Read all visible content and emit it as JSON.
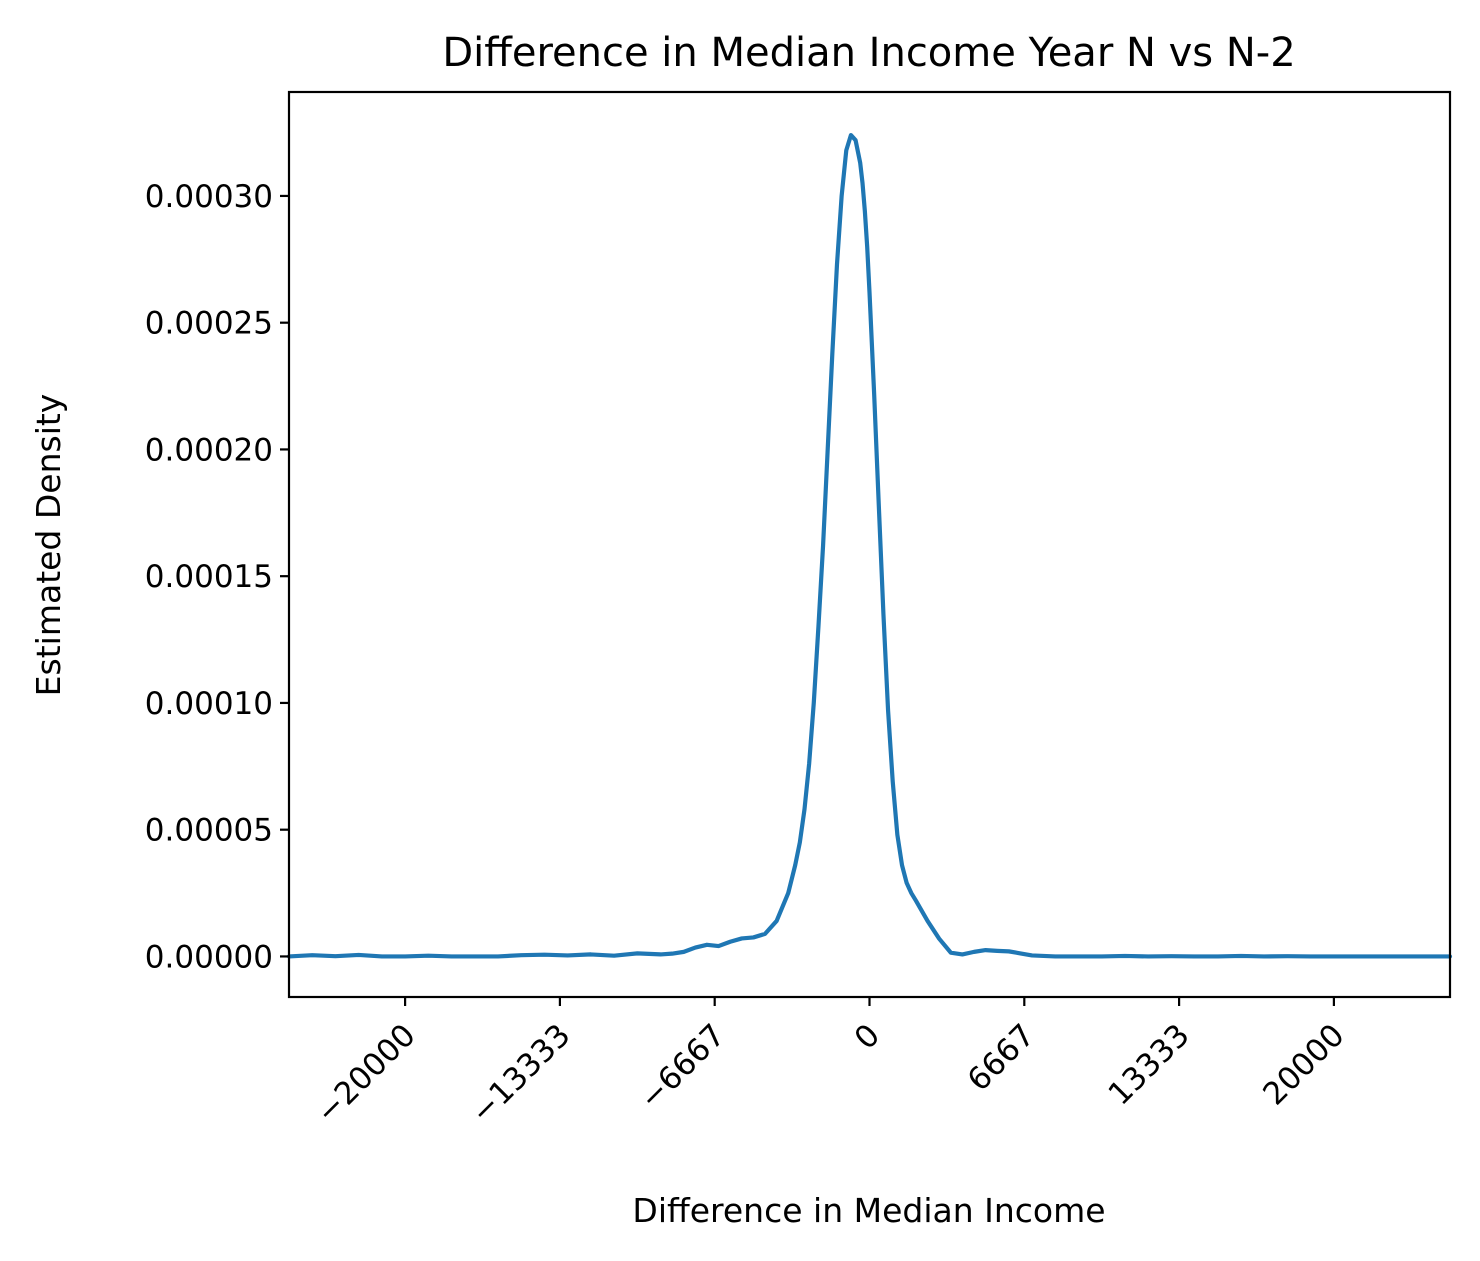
{
  "chart_data": {
    "type": "line",
    "title": "Difference in Median Income Year N vs N-2",
    "xlabel": "Difference in Median Income",
    "ylabel": "Estimated Density",
    "xlim": [
      -25000,
      25000
    ],
    "ylim": [
      -1.6e-05,
      0.000341
    ],
    "xticks": [
      -20000,
      -13333,
      -6667,
      0,
      6667,
      13333,
      20000
    ],
    "xtick_labels": [
      "−20000",
      "−13333",
      "−6667",
      "0",
      "6667",
      "13333",
      "20000"
    ],
    "yticks": [
      0,
      5e-05,
      0.0001,
      0.00015,
      0.0002,
      0.00025,
      0.0003
    ],
    "ytick_labels": [
      "0.00000",
      "0.00005",
      "0.00010",
      "0.00015",
      "0.00020",
      "0.00025",
      "0.00030"
    ],
    "grid": false,
    "series": [
      {
        "color": "#1f77b4",
        "x": [
          -25000,
          -24000,
          -23000,
          -22000,
          -21000,
          -20000,
          -19000,
          -18000,
          -17000,
          -16000,
          -15000,
          -14000,
          -13000,
          -12000,
          -11000,
          -10000,
          -9000,
          -8500,
          -8000,
          -7500,
          -7000,
          -6500,
          -6000,
          -5500,
          -5000,
          -4500,
          -4000,
          -3500,
          -3200,
          -3000,
          -2800,
          -2600,
          -2400,
          -2200,
          -2000,
          -1800,
          -1600,
          -1400,
          -1200,
          -1000,
          -800,
          -600,
          -400,
          -300,
          -200,
          -100,
          0,
          200,
          400,
          600,
          800,
          1000,
          1200,
          1400,
          1600,
          1800,
          2000,
          2500,
          3000,
          3500,
          4000,
          4500,
          5000,
          5500,
          6000,
          6500,
          7000,
          8000,
          9000,
          10000,
          11000,
          12000,
          13000,
          14000,
          15000,
          16000,
          17000,
          18000,
          19000,
          20000,
          21000,
          22000,
          23000,
          24000,
          25000
        ],
        "y": [
          0,
          5e-07,
          1e-07,
          6e-07,
          0,
          0,
          3e-07,
          0,
          0,
          0,
          5e-07,
          7e-07,
          4e-07,
          8e-07,
          3e-07,
          1.2e-06,
          8e-07,
          1.1e-06,
          1.8e-06,
          3.5e-06,
          4.6e-06,
          4.1e-06,
          5.8e-06,
          7.1e-06,
          7.5e-06,
          8.9e-06,
          1.4e-05,
          2.5e-05,
          3.6e-05,
          4.5e-05,
          5.8e-05,
          7.6e-05,
          0.0001,
          0.00013,
          0.000162,
          0.0002,
          0.000238,
          0.000273,
          0.0003,
          0.000318,
          0.000324,
          0.000322,
          0.000313,
          0.000305,
          0.000294,
          0.00028,
          0.000262,
          0.000222,
          0.000178,
          0.000135,
          9.7e-05,
          6.9e-05,
          4.8e-05,
          3.6e-05,
          2.9e-05,
          2.5e-05,
          2.2e-05,
          1.4e-05,
          7e-06,
          1.5e-06,
          8e-07,
          1.8e-06,
          2.5e-06,
          2.2e-06,
          2e-06,
          1.2e-06,
          4e-07,
          0,
          0,
          0,
          2e-07,
          0,
          1e-07,
          0,
          0,
          2e-07,
          0,
          1e-07,
          0,
          0,
          0,
          0,
          0,
          0,
          0
        ]
      }
    ]
  }
}
